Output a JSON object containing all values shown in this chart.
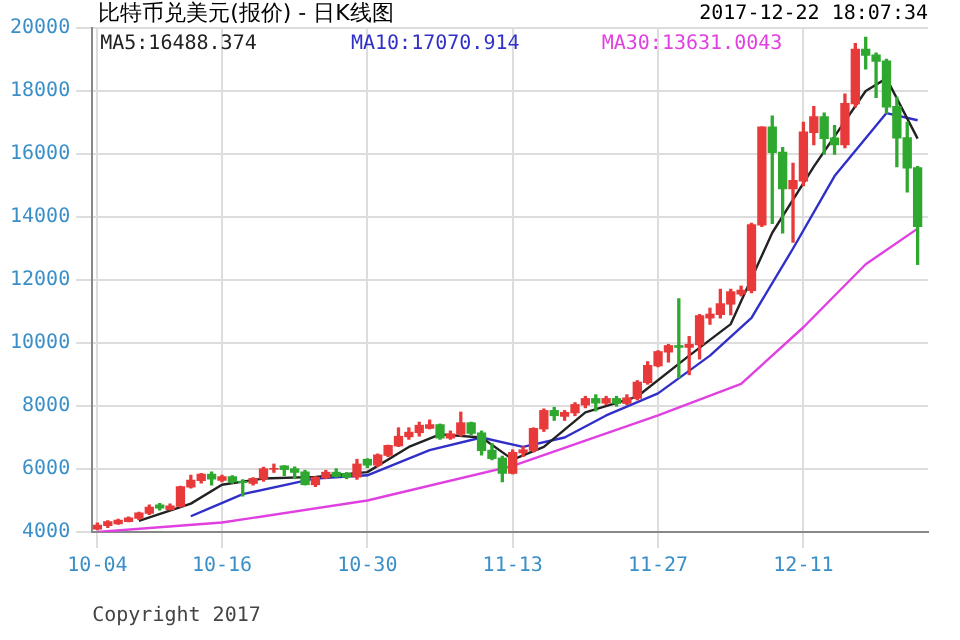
{
  "chart_data": {
    "type": "candlestick",
    "title": "比特币兑美元(报价) - 日K线图",
    "annotations": [
      "2017-12-22 18:07:34",
      "Copyright 2017"
    ],
    "x": [
      "2017-10-04",
      "2017-10-05",
      "2017-10-06",
      "2017-10-07",
      "2017-10-08",
      "2017-10-09",
      "2017-10-10",
      "2017-10-11",
      "2017-10-12",
      "2017-10-13",
      "2017-10-14",
      "2017-10-15",
      "2017-10-16",
      "2017-10-17",
      "2017-10-18",
      "2017-10-19",
      "2017-10-20",
      "2017-10-21",
      "2017-10-22",
      "2017-10-23",
      "2017-10-24",
      "2017-10-25",
      "2017-10-26",
      "2017-10-27",
      "2017-10-28",
      "2017-10-29",
      "2017-10-30",
      "2017-10-31",
      "2017-11-01",
      "2017-11-02",
      "2017-11-03",
      "2017-11-04",
      "2017-11-05",
      "2017-11-06",
      "2017-11-07",
      "2017-11-08",
      "2017-11-09",
      "2017-11-10",
      "2017-11-11",
      "2017-11-12",
      "2017-11-13",
      "2017-11-14",
      "2017-11-15",
      "2017-11-16",
      "2017-11-17",
      "2017-11-18",
      "2017-11-19",
      "2017-11-20",
      "2017-11-21",
      "2017-11-22",
      "2017-11-23",
      "2017-11-24",
      "2017-11-25",
      "2017-11-26",
      "2017-11-27",
      "2017-11-28",
      "2017-11-29",
      "2017-11-30",
      "2017-12-01",
      "2017-12-02",
      "2017-12-03",
      "2017-12-04",
      "2017-12-05",
      "2017-12-06",
      "2017-12-07",
      "2017-12-08",
      "2017-12-09",
      "2017-12-10",
      "2017-12-11",
      "2017-12-12",
      "2017-12-13",
      "2017-12-14",
      "2017-12-15",
      "2017-12-16",
      "2017-12-17",
      "2017-12-18",
      "2017-12-19",
      "2017-12-20",
      "2017-12-21",
      "2017-12-22"
    ],
    "ohlc": [
      [
        4100,
        4280,
        4080,
        4210
      ],
      [
        4210,
        4350,
        4150,
        4320
      ],
      [
        4270,
        4400,
        4250,
        4370
      ],
      [
        4340,
        4470,
        4330,
        4440
      ],
      [
        4440,
        4620,
        4400,
        4600
      ],
      [
        4600,
        4850,
        4560,
        4780
      ],
      [
        4850,
        4900,
        4700,
        4770
      ],
      [
        4720,
        4880,
        4700,
        4820
      ],
      [
        4820,
        5450,
        4800,
        5430
      ],
      [
        5430,
        5800,
        5400,
        5640
      ],
      [
        5640,
        5850,
        5560,
        5830
      ],
      [
        5830,
        5900,
        5500,
        5690
      ],
      [
        5650,
        5800,
        5600,
        5750
      ],
      [
        5750,
        5780,
        5550,
        5600
      ],
      [
        5600,
        5650,
        5150,
        5580
      ],
      [
        5550,
        5720,
        5500,
        5690
      ],
      [
        5690,
        6050,
        5620,
        6000
      ],
      [
        6000,
        6150,
        5900,
        6010
      ],
      [
        6090,
        6100,
        5800,
        5990
      ],
      [
        6000,
        6060,
        5700,
        5900
      ],
      [
        5900,
        5950,
        5500,
        5510
      ],
      [
        5510,
        5750,
        5450,
        5730
      ],
      [
        5730,
        5950,
        5700,
        5890
      ],
      [
        5890,
        6000,
        5750,
        5770
      ],
      [
        5850,
        5880,
        5700,
        5750
      ],
      [
        5750,
        6300,
        5680,
        6150
      ],
      [
        6300,
        6320,
        6050,
        6130
      ],
      [
        6130,
        6470,
        6080,
        6440
      ],
      [
        6440,
        6750,
        6400,
        6740
      ],
      [
        6740,
        7300,
        6720,
        7030
      ],
      [
        7030,
        7300,
        6950,
        7160
      ],
      [
        7160,
        7480,
        7050,
        7380
      ],
      [
        7300,
        7550,
        7280,
        7400
      ],
      [
        7400,
        7420,
        6950,
        6990
      ],
      [
        6990,
        7200,
        6950,
        7110
      ],
      [
        7110,
        7800,
        7050,
        7460
      ],
      [
        7460,
        7480,
        7100,
        7140
      ],
      [
        7140,
        7200,
        6450,
        6590
      ],
      [
        6590,
        6800,
        6300,
        6340
      ],
      [
        6340,
        6400,
        5600,
        5870
      ],
      [
        5870,
        6600,
        5850,
        6520
      ],
      [
        6520,
        6700,
        6400,
        6600
      ],
      [
        6600,
        7300,
        6550,
        7280
      ],
      [
        7280,
        7900,
        7200,
        7850
      ],
      [
        7850,
        7950,
        7550,
        7700
      ],
      [
        7680,
        7850,
        7550,
        7790
      ],
      [
        7790,
        8100,
        7700,
        8040
      ],
      [
        8040,
        8300,
        7950,
        8230
      ],
      [
        8230,
        8350,
        7850,
        8100
      ],
      [
        8100,
        8300,
        8050,
        8230
      ],
      [
        8230,
        8300,
        8000,
        8090
      ],
      [
        8090,
        8350,
        8050,
        8250
      ],
      [
        8250,
        8800,
        8200,
        8750
      ],
      [
        8750,
        9400,
        8700,
        9280
      ],
      [
        9280,
        9750,
        9250,
        9720
      ],
      [
        9720,
        9950,
        9400,
        9910
      ],
      [
        9910,
        11400,
        8900,
        9870
      ],
      [
        9870,
        10200,
        9000,
        9950
      ],
      [
        9950,
        10900,
        9500,
        10860
      ],
      [
        10800,
        11100,
        10600,
        10910
      ],
      [
        10910,
        11700,
        10800,
        11240
      ],
      [
        11240,
        11700,
        10900,
        11620
      ],
      [
        11560,
        11800,
        11500,
        11670
      ],
      [
        11670,
        13800,
        11600,
        13750
      ],
      [
        13750,
        16850,
        13700,
        16850
      ],
      [
        16850,
        17200,
        13800,
        16050
      ],
      [
        16050,
        16200,
        13500,
        14900
      ],
      [
        14900,
        15700,
        13200,
        15150
      ],
      [
        15150,
        17000,
        15000,
        16690
      ],
      [
        16690,
        17500,
        16300,
        17180
      ],
      [
        17180,
        17300,
        16000,
        16500
      ],
      [
        16500,
        16900,
        16000,
        16300
      ],
      [
        16300,
        17900,
        16200,
        17600
      ],
      [
        17600,
        19500,
        17500,
        19320
      ],
      [
        19320,
        19700,
        18700,
        19140
      ],
      [
        19140,
        19200,
        17800,
        18950
      ],
      [
        18950,
        19000,
        17300,
        17500
      ],
      [
        17500,
        17800,
        15600,
        16510
      ],
      [
        16510,
        17000,
        14800,
        15560
      ],
      [
        15560,
        15600,
        12500,
        13700
      ]
    ],
    "colors": [
      "#e83a3a",
      "#e83a3a",
      "#e83a3a",
      "#e83a3a",
      "#e83a3a",
      "#e83a3a",
      "#2ea82e",
      "#e83a3a",
      "#e83a3a",
      "#e83a3a",
      "#e83a3a",
      "#2ea82e",
      "#e83a3a",
      "#2ea82e",
      "#2ea82e",
      "#e83a3a",
      "#e83a3a",
      "#e83a3a",
      "#2ea82e",
      "#2ea82e",
      "#2ea82e",
      "#e83a3a",
      "#e83a3a",
      "#2ea82e",
      "#2ea82e",
      "#e83a3a",
      "#2ea82e",
      "#e83a3a",
      "#e83a3a",
      "#e83a3a",
      "#e83a3a",
      "#e83a3a",
      "#e83a3a",
      "#2ea82e",
      "#e83a3a",
      "#e83a3a",
      "#2ea82e",
      "#2ea82e",
      "#2ea82e",
      "#2ea82e",
      "#e83a3a",
      "#e83a3a",
      "#e83a3a",
      "#e83a3a",
      "#2ea82e",
      "#e83a3a",
      "#e83a3a",
      "#e83a3a",
      "#2ea82e",
      "#e83a3a",
      "#2ea82e",
      "#e83a3a",
      "#e83a3a",
      "#e83a3a",
      "#e83a3a",
      "#e83a3a",
      "#2ea82e",
      "#e83a3a",
      "#e83a3a",
      "#e83a3a",
      "#e83a3a",
      "#e83a3a",
      "#e83a3a",
      "#e83a3a",
      "#e83a3a",
      "#2ea82e",
      "#2ea82e",
      "#e83a3a",
      "#e83a3a",
      "#e83a3a",
      "#2ea82e",
      "#2ea82e",
      "#e83a3a",
      "#e83a3a",
      "#2ea82e",
      "#2ea82e",
      "#2ea82e",
      "#2ea82e",
      "#2ea82e",
      "#2ea82e"
    ],
    "series": [
      {
        "name": "MA5:16488.374",
        "type": "line",
        "color": "#222222",
        "x": [
          "2017-10-08",
          "2017-10-13",
          "2017-10-16",
          "2017-10-20",
          "2017-10-25",
          "2017-10-30",
          "2017-11-03",
          "2017-11-06",
          "2017-11-10",
          "2017-11-13",
          "2017-11-16",
          "2017-11-20",
          "2017-11-25",
          "2017-11-30",
          "2017-12-04",
          "2017-12-08",
          "2017-12-12",
          "2017-12-17",
          "2017-12-19",
          "2017-12-22"
        ],
        "values": [
          4350,
          4900,
          5500,
          5700,
          5750,
          5900,
          6700,
          7100,
          7000,
          6300,
          6700,
          7800,
          8300,
          9600,
          10600,
          13500,
          15600,
          18000,
          18400,
          16488.374
        ]
      },
      {
        "name": "MA10:17070.914",
        "type": "line",
        "color": "#3030c8",
        "x": [
          "2017-10-13",
          "2017-10-18",
          "2017-10-25",
          "2017-10-30",
          "2017-11-05",
          "2017-11-10",
          "2017-11-14",
          "2017-11-18",
          "2017-11-22",
          "2017-11-27",
          "2017-12-02",
          "2017-12-06",
          "2017-12-10",
          "2017-12-14",
          "2017-12-19",
          "2017-12-22"
        ],
        "values": [
          4500,
          5200,
          5700,
          5800,
          6600,
          7000,
          6700,
          7000,
          7700,
          8400,
          9600,
          10800,
          13000,
          15300,
          17300,
          17070.914
        ]
      },
      {
        "name": "MA30:13631.0043",
        "type": "line",
        "color": "#e040e0",
        "x": [
          "2017-10-04",
          "2017-10-16",
          "2017-10-30",
          "2017-11-13",
          "2017-11-27",
          "2017-12-05",
          "2017-12-11",
          "2017-12-17",
          "2017-12-22"
        ],
        "values": [
          4000,
          4300,
          5000,
          6100,
          7700,
          8700,
          10500,
          12500,
          13631.0043
        ]
      }
    ],
    "xlim": [
      "2017-10-03T12:00",
      "2017-12-23"
    ],
    "xticks": [
      {
        "value": "2017-10-04",
        "label": "10-04"
      },
      {
        "value": "2017-10-16",
        "label": "10-16"
      },
      {
        "value": "2017-10-30",
        "label": "10-30"
      },
      {
        "value": "2017-11-13",
        "label": "11-13"
      },
      {
        "value": "2017-11-27",
        "label": "11-27"
      },
      {
        "value": "2017-12-11",
        "label": "12-11"
      }
    ],
    "ylim": [
      4000,
      20000
    ],
    "yticks": [
      4000,
      6000,
      8000,
      10000,
      12000,
      14000,
      16000,
      18000,
      20000
    ],
    "grid": true,
    "legend": "top left",
    "marker": "none",
    "line_style": "solid"
  }
}
